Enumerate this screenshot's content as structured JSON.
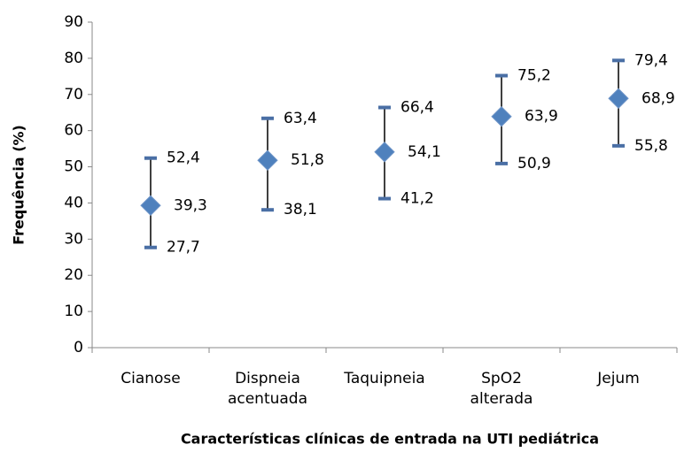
{
  "chart_data": {
    "type": "errorbar",
    "x_axis_label": "Características clínicas de entrada na UTI pediátrica",
    "y_axis_label": "Frequência (%)",
    "categories": [
      "Cianose",
      "Dispneia acentuada",
      "Taquipneia",
      "SpO2 alterada",
      "Jejum"
    ],
    "values": [
      39.3,
      51.8,
      54.1,
      63.9,
      68.9
    ],
    "value_labels": [
      "39,3",
      "51,8",
      "54,1",
      "63,9",
      "68,9"
    ],
    "upper": [
      52.4,
      63.4,
      66.4,
      75.2,
      79.4
    ],
    "upper_labels": [
      "52,4",
      "63,4",
      "66,4",
      "75,2",
      "79,4"
    ],
    "lower": [
      27.7,
      38.1,
      41.2,
      50.9,
      55.8
    ],
    "lower_labels": [
      "27,7",
      "38,1",
      "41,2",
      "50,9",
      "55,8"
    ],
    "color": "#4f81bd",
    "ylim": [
      0,
      90
    ],
    "yticks": [
      0,
      10,
      20,
      30,
      40,
      50,
      60,
      70,
      80,
      90
    ],
    "grid": false
  }
}
